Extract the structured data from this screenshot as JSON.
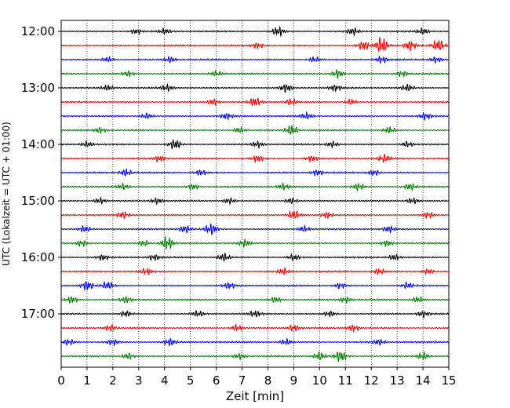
{
  "chart_data": {
    "type": "line",
    "xlabel": "Zeit  [min]",
    "ylabel": "UTC (Lokalzeit = UTC + 01:00)",
    "xlim": [
      0,
      15
    ],
    "xticks": [
      0,
      1,
      2,
      3,
      4,
      5,
      6,
      7,
      8,
      9,
      10,
      11,
      12,
      13,
      14,
      15
    ],
    "xgrid": true,
    "ygrid": false,
    "row_interval_minutes": 15,
    "start_time": "12:00",
    "yticks": [
      {
        "row": 0,
        "label": "12:00"
      },
      {
        "row": 4,
        "label": "13:00"
      },
      {
        "row": 8,
        "label": "14:00"
      },
      {
        "row": 12,
        "label": "15:00"
      },
      {
        "row": 16,
        "label": "16:00"
      },
      {
        "row": 20,
        "label": "17:00"
      }
    ],
    "color_cycle": [
      "#000000",
      "#ff0000",
      "#0000ff",
      "#008000"
    ],
    "traces": [
      {
        "row": 0,
        "color": "#000000",
        "bursts": [
          [
            2.9,
            0.7
          ],
          [
            4.0,
            0.7
          ],
          [
            8.4,
            1.3
          ],
          [
            11.3,
            0.9
          ],
          [
            14.0,
            0.8
          ]
        ]
      },
      {
        "row": 1,
        "color": "#ff0000",
        "bursts": [
          [
            7.6,
            0.8
          ],
          [
            11.7,
            1.2
          ],
          [
            12.4,
            2.4
          ],
          [
            13.5,
            1.3
          ],
          [
            14.6,
            1.6
          ]
        ]
      },
      {
        "row": 2,
        "color": "#0000ff",
        "bursts": [
          [
            1.8,
            0.7
          ],
          [
            4.2,
            0.8
          ],
          [
            9.8,
            0.8
          ],
          [
            12.4,
            0.9
          ],
          [
            14.5,
            0.8
          ]
        ]
      },
      {
        "row": 3,
        "color": "#008000",
        "bursts": [
          [
            2.6,
            0.7
          ],
          [
            6.0,
            0.7
          ],
          [
            10.7,
            1.2
          ],
          [
            13.2,
            0.8
          ]
        ]
      },
      {
        "row": 4,
        "color": "#000000",
        "bursts": [
          [
            1.8,
            0.7
          ],
          [
            4.1,
            0.8
          ],
          [
            8.7,
            1.1
          ],
          [
            10.6,
            0.8
          ],
          [
            13.4,
            0.9
          ]
        ]
      },
      {
        "row": 5,
        "color": "#ff0000",
        "bursts": [
          [
            5.9,
            0.9
          ],
          [
            7.5,
            1.2
          ],
          [
            8.9,
            0.9
          ],
          [
            11.2,
            0.8
          ]
        ]
      },
      {
        "row": 6,
        "color": "#0000ff",
        "bursts": [
          [
            3.3,
            0.8
          ],
          [
            6.4,
            0.8
          ],
          [
            9.5,
            0.8
          ],
          [
            14.1,
            0.8
          ]
        ]
      },
      {
        "row": 7,
        "color": "#008000",
        "bursts": [
          [
            1.5,
            0.7
          ],
          [
            6.9,
            0.8
          ],
          [
            8.9,
            1.4
          ],
          [
            12.7,
            0.8
          ]
        ]
      },
      {
        "row": 8,
        "color": "#000000",
        "bursts": [
          [
            1.0,
            0.7
          ],
          [
            4.4,
            1.4
          ],
          [
            7.6,
            0.8
          ],
          [
            10.5,
            0.8
          ],
          [
            13.4,
            0.8
          ]
        ]
      },
      {
        "row": 9,
        "color": "#ff0000",
        "bursts": [
          [
            3.8,
            0.8
          ],
          [
            7.6,
            0.9
          ],
          [
            9.7,
            0.8
          ],
          [
            12.5,
            1.0
          ]
        ]
      },
      {
        "row": 10,
        "color": "#0000ff",
        "bursts": [
          [
            2.5,
            0.9
          ],
          [
            5.4,
            0.8
          ],
          [
            9.9,
            0.8
          ],
          [
            12.1,
            0.8
          ]
        ]
      },
      {
        "row": 11,
        "color": "#008000",
        "bursts": [
          [
            2.4,
            0.8
          ],
          [
            5.1,
            0.8
          ],
          [
            8.6,
            0.8
          ],
          [
            11.5,
            0.9
          ],
          [
            13.5,
            0.9
          ]
        ]
      },
      {
        "row": 12,
        "color": "#000000",
        "bursts": [
          [
            1.5,
            0.8
          ],
          [
            3.7,
            0.8
          ],
          [
            6.5,
            0.8
          ],
          [
            8.9,
            0.8
          ],
          [
            13.6,
            0.8
          ]
        ]
      },
      {
        "row": 13,
        "color": "#ff0000",
        "bursts": [
          [
            2.4,
            0.8
          ],
          [
            9.0,
            1.1
          ],
          [
            10.3,
            0.8
          ],
          [
            14.2,
            0.8
          ]
        ]
      },
      {
        "row": 14,
        "color": "#0000ff",
        "bursts": [
          [
            0.9,
            0.8
          ],
          [
            4.8,
            1.0
          ],
          [
            5.8,
            1.5
          ],
          [
            9.4,
            0.8
          ],
          [
            12.7,
            0.8
          ]
        ]
      },
      {
        "row": 15,
        "color": "#008000",
        "bursts": [
          [
            0.8,
            0.9
          ],
          [
            3.2,
            0.8
          ],
          [
            4.1,
            1.9
          ],
          [
            7.1,
            0.9
          ],
          [
            12.6,
            0.8
          ]
        ]
      },
      {
        "row": 16,
        "color": "#000000",
        "bursts": [
          [
            1.6,
            0.8
          ],
          [
            3.6,
            0.8
          ],
          [
            6.3,
            1.1
          ],
          [
            9.0,
            0.8
          ],
          [
            12.9,
            0.8
          ]
        ]
      },
      {
        "row": 17,
        "color": "#ff0000",
        "bursts": [
          [
            3.3,
            0.8
          ],
          [
            8.6,
            0.8
          ],
          [
            12.3,
            0.8
          ],
          [
            14.2,
            0.8
          ]
        ]
      },
      {
        "row": 18,
        "color": "#0000ff",
        "bursts": [
          [
            1.0,
            1.3
          ],
          [
            1.8,
            1.0
          ],
          [
            6.5,
            0.8
          ],
          [
            10.8,
            0.8
          ],
          [
            13.4,
            0.8
          ]
        ]
      },
      {
        "row": 19,
        "color": "#008000",
        "bursts": [
          [
            0.4,
            0.9
          ],
          [
            2.5,
            0.8
          ],
          [
            8.3,
            0.8
          ],
          [
            11.0,
            0.8
          ],
          [
            13.8,
            0.8
          ]
        ]
      },
      {
        "row": 20,
        "color": "#000000",
        "bursts": [
          [
            2.5,
            0.8
          ],
          [
            5.3,
            0.8
          ],
          [
            7.5,
            0.8
          ],
          [
            10.4,
            0.8
          ],
          [
            14.0,
            0.8
          ]
        ]
      },
      {
        "row": 21,
        "color": "#ff0000",
        "bursts": [
          [
            1.9,
            0.8
          ],
          [
            6.8,
            0.9
          ],
          [
            9.0,
            0.9
          ],
          [
            11.3,
            0.9
          ]
        ]
      },
      {
        "row": 22,
        "color": "#0000ff",
        "bursts": [
          [
            0.3,
            0.8
          ],
          [
            2.0,
            0.8
          ],
          [
            4.2,
            1.0
          ],
          [
            8.7,
            0.8
          ],
          [
            12.3,
            0.8
          ]
        ]
      },
      {
        "row": 23,
        "color": "#008000",
        "bursts": [
          [
            2.6,
            0.8
          ],
          [
            6.9,
            0.8
          ],
          [
            10.0,
            1.1
          ],
          [
            10.8,
            1.6
          ],
          [
            14.0,
            1.0
          ]
        ]
      }
    ]
  }
}
